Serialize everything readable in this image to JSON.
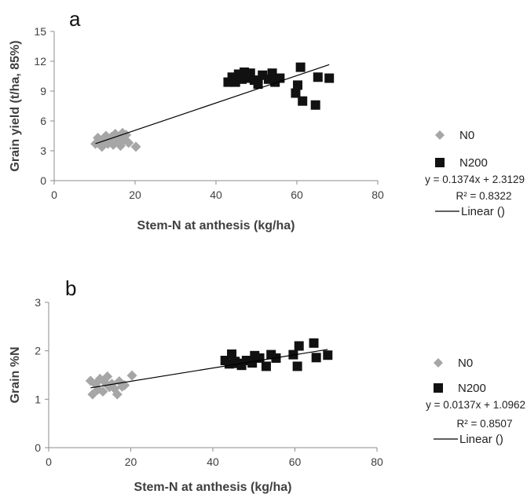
{
  "chart_data": [
    {
      "type": "scatter",
      "panel_label": "a",
      "xlabel": "Stem-N at anthesis (kg/ha)",
      "ylabel": "Grain yield (t/ha, 85%)",
      "xlim": [
        0,
        80
      ],
      "ylim": [
        0,
        15
      ],
      "xticks": [
        0,
        20,
        40,
        60,
        80
      ],
      "yticks": [
        0,
        3,
        6,
        9,
        12,
        15
      ],
      "grid": false,
      "legend_position": "right",
      "series": [
        {
          "name": "N0",
          "marker": "diamond",
          "color": "#a6a6a6",
          "points": [
            [
              10.2,
              3.7
            ],
            [
              10.8,
              4.3
            ],
            [
              11.3,
              3.9
            ],
            [
              11.8,
              3.4
            ],
            [
              12.3,
              4.1
            ],
            [
              12.8,
              4.5
            ],
            [
              13.3,
              3.7
            ],
            [
              13.6,
              4.0
            ],
            [
              14.2,
              4.4
            ],
            [
              14.6,
              3.6
            ],
            [
              15.1,
              4.7
            ],
            [
              15.5,
              3.9
            ],
            [
              16.0,
              4.2
            ],
            [
              16.4,
              3.5
            ],
            [
              16.9,
              4.8
            ],
            [
              17.3,
              4.1
            ],
            [
              17.8,
              4.6
            ],
            [
              18.4,
              3.8
            ],
            [
              20.2,
              3.4
            ]
          ]
        },
        {
          "name": "N200",
          "marker": "square",
          "color": "#111111",
          "points": [
            [
              43.0,
              9.9
            ],
            [
              44.0,
              10.4
            ],
            [
              44.8,
              9.9
            ],
            [
              45.6,
              10.7
            ],
            [
              46.4,
              10.2
            ],
            [
              47.0,
              10.9
            ],
            [
              47.8,
              10.3
            ],
            [
              48.5,
              10.8
            ],
            [
              49.5,
              10.1
            ],
            [
              50.4,
              9.7
            ],
            [
              51.5,
              10.6
            ],
            [
              53.0,
              10.2
            ],
            [
              53.9,
              10.8
            ],
            [
              54.6,
              9.9
            ],
            [
              55.8,
              10.3
            ],
            [
              59.7,
              8.8
            ],
            [
              60.2,
              9.6
            ],
            [
              60.9,
              11.4
            ],
            [
              61.4,
              8.0
            ],
            [
              64.6,
              7.6
            ],
            [
              65.2,
              10.4
            ],
            [
              68.0,
              10.3
            ]
          ]
        }
      ],
      "trendline": {
        "name": "Linear ()",
        "slope": 0.1374,
        "intercept": 2.3129,
        "x_range": [
          10.2,
          68.0
        ]
      },
      "equation_label": "y = 0.1374x + 2.3129",
      "r2_label": "R² = 0.8322"
    },
    {
      "type": "scatter",
      "panel_label": "b",
      "xlabel": "Stem-N at anthesis (kg/ha)",
      "ylabel": "Grain %N",
      "xlim": [
        0,
        80
      ],
      "ylim": [
        0,
        3
      ],
      "xticks": [
        0,
        20,
        40,
        60,
        80
      ],
      "yticks": [
        0,
        1,
        2,
        3
      ],
      "grid": false,
      "legend_position": "right",
      "series": [
        {
          "name": "N0",
          "marker": "diamond",
          "color": "#a6a6a6",
          "points": [
            [
              10.2,
              1.38
            ],
            [
              10.7,
              1.1
            ],
            [
              11.4,
              1.31
            ],
            [
              12.0,
              1.2
            ],
            [
              12.5,
              1.42
            ],
            [
              13.2,
              1.16
            ],
            [
              13.7,
              1.35
            ],
            [
              14.3,
              1.47
            ],
            [
              14.8,
              1.25
            ],
            [
              15.4,
              1.32
            ],
            [
              16.0,
              1.22
            ],
            [
              16.7,
              1.1
            ],
            [
              17.2,
              1.37
            ],
            [
              17.9,
              1.26
            ],
            [
              18.5,
              1.29
            ],
            [
              20.3,
              1.49
            ]
          ]
        },
        {
          "name": "N200",
          "marker": "square",
          "color": "#111111",
          "points": [
            [
              43.0,
              1.8
            ],
            [
              44.0,
              1.73
            ],
            [
              44.6,
              1.93
            ],
            [
              45.4,
              1.78
            ],
            [
              46.2,
              1.74
            ],
            [
              47.0,
              1.7
            ],
            [
              48.2,
              1.8
            ],
            [
              49.6,
              1.75
            ],
            [
              50.2,
              1.9
            ],
            [
              51.4,
              1.85
            ],
            [
              53.0,
              1.68
            ],
            [
              54.2,
              1.92
            ],
            [
              55.4,
              1.85
            ],
            [
              59.6,
              1.92
            ],
            [
              60.6,
              1.68
            ],
            [
              61.0,
              2.1
            ],
            [
              64.6,
              2.16
            ],
            [
              65.2,
              1.86
            ],
            [
              68.0,
              1.91
            ]
          ]
        }
      ],
      "trendline": {
        "name": "Linear ()",
        "slope": 0.0137,
        "intercept": 1.0962,
        "x_range": [
          10.2,
          68.0
        ]
      },
      "equation_label": "y = 0.0137x + 1.0962",
      "r2_label": "R² = 0.8507"
    }
  ]
}
